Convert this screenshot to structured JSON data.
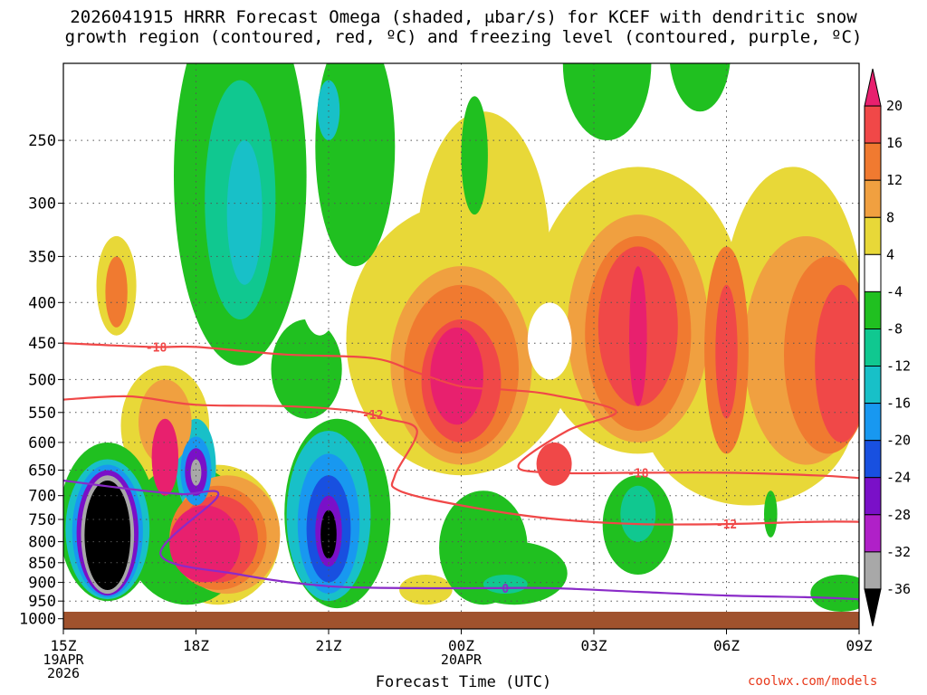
{
  "title": {
    "line1": "2026041915 HRRR Forecast Omega (shaded, μbar/s) for KCEF with dendritic snow",
    "line2": "growth region (contoured, red, ºC) and freezing level (contoured, purple, ºC)"
  },
  "credit": "coolwx.com/models",
  "chart_data": {
    "type": "heatmap",
    "title": "2026041915 HRRR Forecast Omega (shaded, μbar/s) for KCEF with dendritic snow growth region (contoured, red, ºC) and freezing level (contoured, purple, ºC)",
    "xlabel": "Forecast Time (UTC)",
    "ylabel": "",
    "x_range_hours": [
      15,
      33
    ],
    "y_range_mb": [
      200,
      1030
    ],
    "y_scale": "log-pressure",
    "grid": true,
    "x_ticks": [
      {
        "h": 15,
        "label": "15Z",
        "sub": [
          "19APR",
          "2026"
        ]
      },
      {
        "h": 18,
        "label": "18Z",
        "sub": []
      },
      {
        "h": 21,
        "label": "21Z",
        "sub": []
      },
      {
        "h": 24,
        "label": "00Z",
        "sub": [
          "20APR"
        ]
      },
      {
        "h": 27,
        "label": "03Z",
        "sub": []
      },
      {
        "h": 30,
        "label": "06Z",
        "sub": []
      },
      {
        "h": 33,
        "label": "09Z",
        "sub": []
      }
    ],
    "y_ticks": [
      250,
      300,
      350,
      400,
      450,
      500,
      550,
      600,
      650,
      700,
      750,
      800,
      850,
      900,
      950,
      1000
    ],
    "colorbar": {
      "labels": [
        "20",
        "16",
        "12",
        "8",
        "4",
        "-4",
        "-8",
        "-12",
        "-16",
        "-20",
        "-24",
        "-28",
        "-32",
        "-36"
      ],
      "colors": [
        "#e8206e",
        "#f04848",
        "#f07a30",
        "#f0a040",
        "#e8d838",
        "#ffffff",
        "#20c020",
        "#10c890",
        "#18c0c8",
        "#1898f0",
        "#1850e0",
        "#7a10c8",
        "#b020c8",
        "#a8a8a8",
        "#000000"
      ]
    },
    "omega_features": [
      {
        "name": "black core 16Z",
        "h": 16.0,
        "p": 740,
        "dh": 0.45,
        "dp_low": 660,
        "dp_high": 860,
        "level": -36
      },
      {
        "name": "magenta 18Z low",
        "h": 18.2,
        "p": 840,
        "level": 20
      },
      {
        "name": "max 00Z",
        "h": 23.9,
        "p": 500,
        "level": 20
      },
      {
        "name": "max 03.5Z",
        "h": 28.0,
        "p": 400,
        "level": 20
      },
      {
        "name": "min 21Z",
        "h": 21.0,
        "p": 790,
        "level": -36
      }
    ],
    "series": [
      {
        "name": "-18",
        "color": "#f04848",
        "points": [
          [
            15,
            450
          ],
          [
            17,
            455
          ],
          [
            18,
            455
          ],
          [
            20,
            465
          ],
          [
            22,
            470
          ],
          [
            23,
            490
          ],
          [
            24,
            510
          ],
          [
            25,
            515
          ],
          [
            26,
            522
          ],
          [
            27.5,
            548
          ],
          [
            26.4,
            580
          ],
          [
            25.3,
            640
          ],
          [
            26,
            655
          ],
          [
            28,
            655
          ],
          [
            30,
            655
          ],
          [
            32,
            660
          ],
          [
            33,
            665
          ]
        ]
      },
      {
        "name": "-12",
        "color": "#f04848",
        "points": [
          [
            15,
            530
          ],
          [
            16.5,
            525
          ],
          [
            18,
            538
          ],
          [
            20,
            540
          ],
          [
            21.5,
            547
          ],
          [
            22.3,
            560
          ],
          [
            23,
            580
          ],
          [
            22.5,
            660
          ],
          [
            22.6,
            690
          ],
          [
            24,
            720
          ],
          [
            26,
            748
          ],
          [
            28,
            760
          ],
          [
            30,
            760
          ],
          [
            32,
            755
          ],
          [
            33,
            755
          ]
        ]
      },
      {
        "name": "0",
        "color": "#8a2bc8",
        "points": [
          [
            15,
            670
          ],
          [
            16.8,
            690
          ],
          [
            17.7,
            697
          ],
          [
            18.5,
            700
          ],
          [
            17.2,
            830
          ],
          [
            19,
            880
          ],
          [
            21,
            910
          ],
          [
            23,
            915
          ],
          [
            24.5,
            915
          ],
          [
            26,
            915
          ],
          [
            28,
            925
          ],
          [
            30,
            935
          ],
          [
            32,
            940
          ],
          [
            33,
            945
          ]
        ]
      }
    ],
    "contour_labels": [
      {
        "text": "-18",
        "h": 17.1,
        "p": 455,
        "series": "-18"
      },
      {
        "text": "-12",
        "h": 22.0,
        "p": 553,
        "series": "-12"
      },
      {
        "text": "-18",
        "h": 28.0,
        "p": 655,
        "series": "-18"
      },
      {
        "text": "-12",
        "h": 30.0,
        "p": 760,
        "series": "-12"
      },
      {
        "text": "0",
        "h": 25.0,
        "p": 915,
        "series": "0"
      }
    ]
  }
}
